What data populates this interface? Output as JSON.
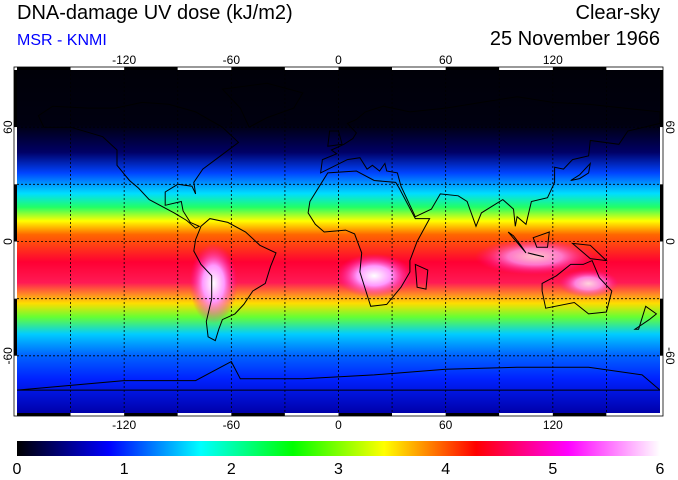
{
  "header": {
    "title": "DNA-damage UV dose (kJ/m2)",
    "subtitle": "MSR - KNMI",
    "condition": "Clear-sky",
    "date": "25 November 1966"
  },
  "map": {
    "projection": "equirectangular",
    "lon_range": [
      -180,
      180
    ],
    "lat_range": [
      -90,
      90
    ],
    "lon_ticks": [
      {
        "value": -120,
        "label": "-120"
      },
      {
        "value": -60,
        "label": "-60"
      },
      {
        "value": 0,
        "label": "0"
      },
      {
        "value": 60,
        "label": "60"
      },
      {
        "value": 120,
        "label": "120"
      }
    ],
    "lat_ticks": [
      {
        "value": 60,
        "label": "60"
      },
      {
        "value": 0,
        "label": "0"
      },
      {
        "value": -60,
        "label": "-60"
      }
    ],
    "grid": "dashed, every 30 degrees",
    "colors": {
      "coastline": "#000000",
      "grid": "#000000"
    }
  },
  "colorbar": {
    "range": [
      0,
      6
    ],
    "tick_labels": [
      "0",
      "1",
      "2",
      "3",
      "4",
      "5",
      "6"
    ],
    "colors": [
      "#000000",
      "#0000ff",
      "#00ffff",
      "#00ff00",
      "#ffff00",
      "#ff0000",
      "#ff00ff",
      "#ffffff"
    ]
  }
}
